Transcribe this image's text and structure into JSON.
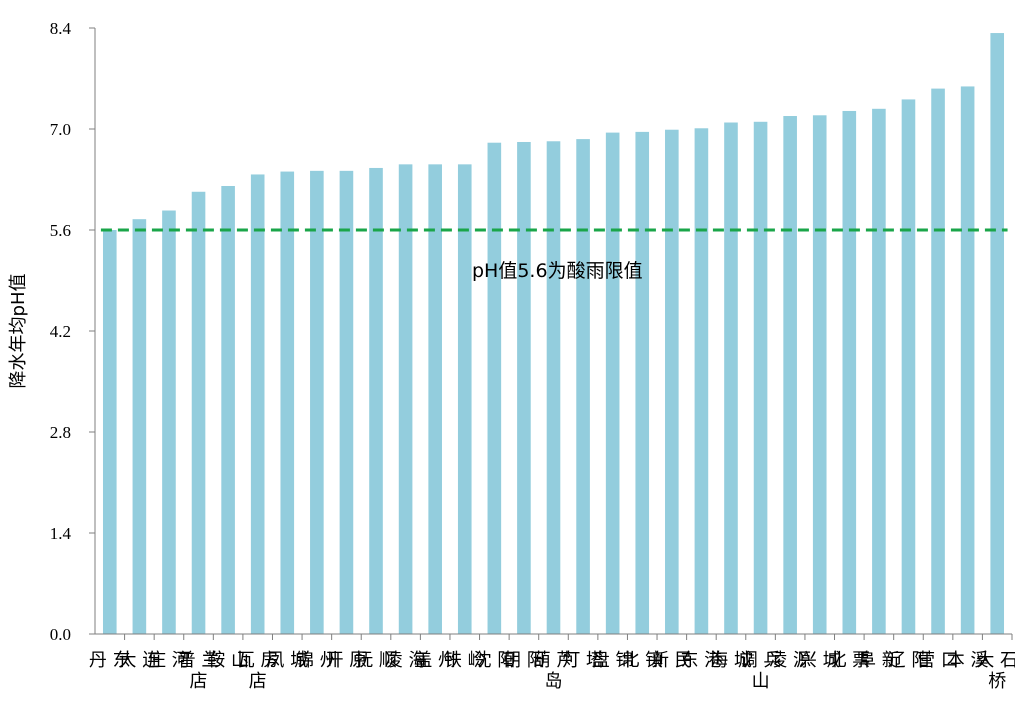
{
  "chart_data": {
    "type": "bar",
    "ylabel": "降水年均pH值",
    "xlabel": "",
    "ylim": [
      0,
      8.4
    ],
    "yticks": [
      "0.0",
      "1.4",
      "2.8",
      "4.2",
      "5.6",
      "7.0",
      "8.4"
    ],
    "categories": [
      "丹东",
      "大连",
      "庄河",
      "普兰店",
      "鞍山",
      "瓦房店",
      "凤城",
      "锦州",
      "开原",
      "抚顺",
      "凌海",
      "盖州",
      "铁岭",
      "沈阳",
      "朝阳",
      "葫芦岛",
      "灯塔",
      "盘锦",
      "北镇",
      "新民",
      "东港",
      "海城",
      "调兵山",
      "凌源",
      "兴城",
      "北票",
      "阜新",
      "辽阳",
      "营口",
      "本溪",
      "大石桥"
    ],
    "values": [
      5.6,
      5.75,
      5.87,
      6.13,
      6.21,
      6.37,
      6.41,
      6.42,
      6.42,
      6.46,
      6.51,
      6.51,
      6.51,
      6.81,
      6.82,
      6.83,
      6.86,
      6.95,
      6.96,
      6.99,
      7.01,
      7.09,
      7.1,
      7.18,
      7.19,
      7.25,
      7.28,
      7.41,
      7.56,
      7.59,
      8.33
    ],
    "bar_color": "#93cddd",
    "reference_line": {
      "value": 5.6,
      "color": "#1aa549",
      "style": "dashed",
      "label": "pH值5.6为酸雨限值"
    },
    "grid": false,
    "legend": "none"
  }
}
